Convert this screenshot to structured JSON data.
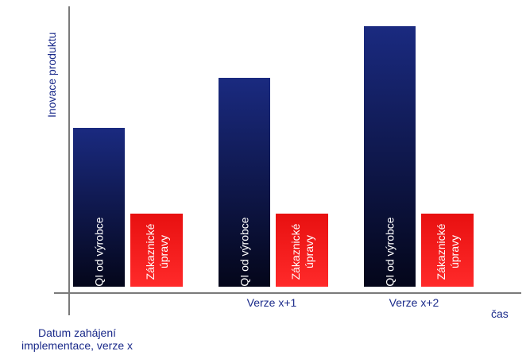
{
  "chart_data": {
    "type": "bar",
    "ylabel": "Inovace produktu",
    "xlabel": "čas",
    "categories": [
      "Datum zahájení implementace, verze x",
      "Verze x+1",
      "Verze x+2"
    ],
    "category_label_lines": [
      [
        "Datum zahájení",
        "implementace, verze x"
      ],
      [
        "Verze x+1"
      ],
      [
        "Verze x+2"
      ]
    ],
    "series": [
      {
        "label_lines": [
          "QI od výrobce"
        ],
        "values": [
          200,
          263,
          328
        ],
        "color_top": "#1a2a80",
        "color_bottom": "#04061a"
      },
      {
        "label_lines": [
          "Zákaznické",
          "úpravy"
        ],
        "values": [
          92,
          92,
          92
        ],
        "color_top": "#e81010",
        "color_bottom": "#ff2a2a"
      }
    ],
    "ylim": [
      0,
      360
    ],
    "grid": false
  }
}
